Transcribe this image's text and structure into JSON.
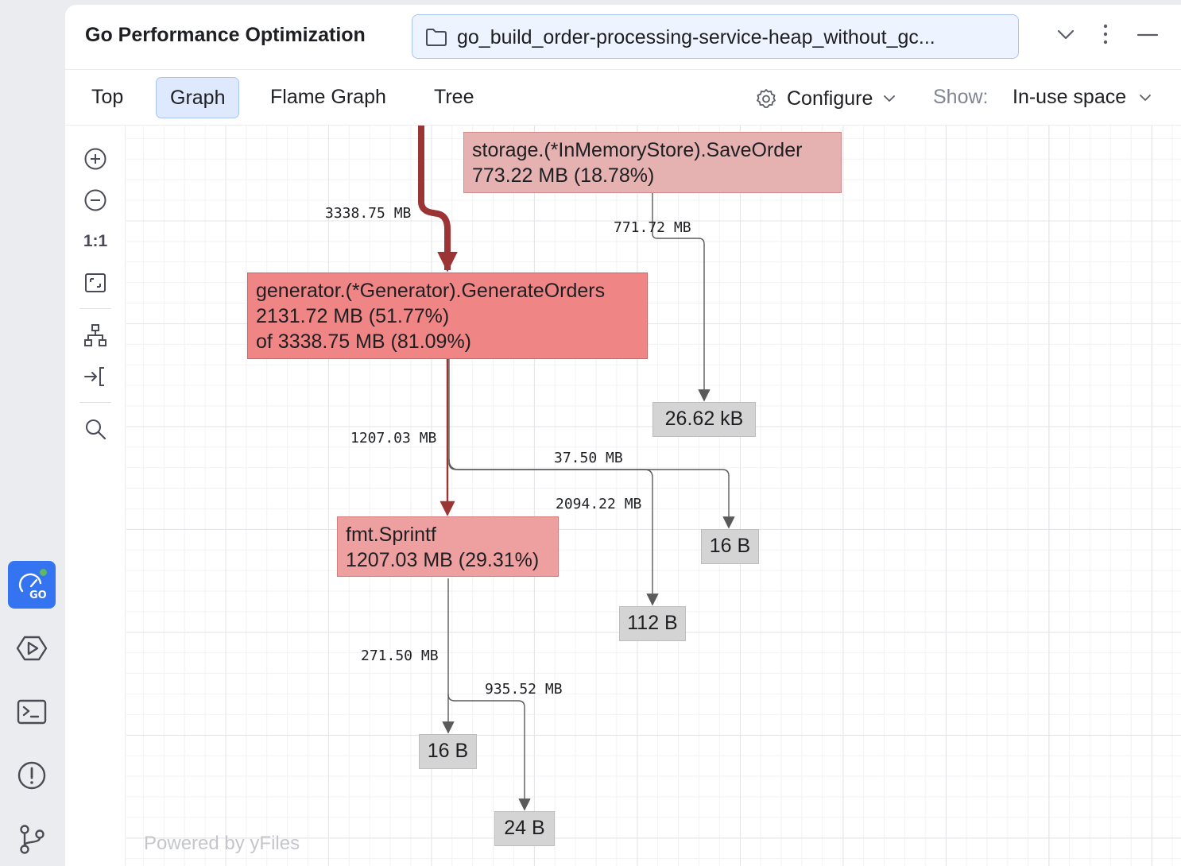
{
  "left_strip": {
    "items": [
      {
        "icon": "go-profiler-icon",
        "active": true
      },
      {
        "icon": "run-icon"
      },
      {
        "icon": "terminal-icon"
      },
      {
        "icon": "problems-icon"
      },
      {
        "icon": "git-branch-icon"
      }
    ]
  },
  "header": {
    "title": "Go Performance Optimization",
    "file_name": "go_build_order-processing-service-heap_without_gc..."
  },
  "tabs": [
    {
      "label": "Top"
    },
    {
      "label": "Graph",
      "selected": true
    },
    {
      "label": "Flame Graph"
    },
    {
      "label": "Tree"
    }
  ],
  "toolbar_right": {
    "configure_label": "Configure",
    "show_label": "Show:",
    "show_value": "In-use space"
  },
  "graph_tools": {
    "actual_size_label": "1:1"
  },
  "graph": {
    "nodes": {
      "save_order": {
        "name": "storage.(*InMemoryStore).SaveOrder",
        "flat": "773.22 MB (18.78%)"
      },
      "generate_orders": {
        "name": "generator.(*Generator).GenerateOrders",
        "flat": "2131.72 MB (51.77%)",
        "cum": "of 3338.75 MB (81.09%)"
      },
      "sprintf": {
        "name": "fmt.Sprintf",
        "flat": "1207.03 MB (29.31%)"
      }
    },
    "leaves": {
      "leaf_2662kb": "26.62 kB",
      "leaf_16b_a": "16 B",
      "leaf_112b": "112 B",
      "leaf_16b_b": "16 B",
      "leaf_24b": "24 B"
    },
    "edges": {
      "e_into_generate": "3338.75 MB",
      "e_save_to_leaf": "771.72 MB",
      "e_gen_to_sprintf": "1207.03 MB",
      "e_gen_to_16b": "37.50 MB",
      "e_gen_to_112b": "2094.22 MB",
      "e_sprintf_to_16b": "271.50 MB",
      "e_sprintf_to_24b": "935.52 MB"
    },
    "colors": {
      "hot_edge": "#9b3434",
      "edge": "#5a5a5a"
    }
  },
  "watermark": "Powered by yFiles"
}
